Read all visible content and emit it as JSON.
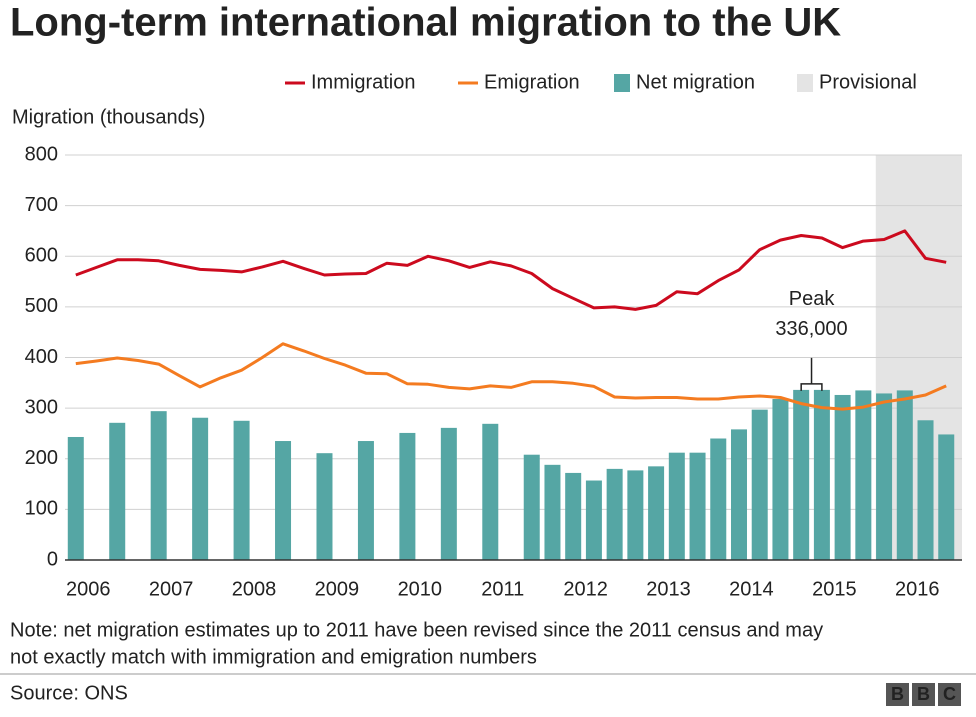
{
  "chart_data": {
    "type": "combo",
    "title": "Long-term international migration to the UK",
    "y_label": "Migration (thousands)",
    "xlim": [
      2005.72,
      2016.54
    ],
    "xticks": [
      2006,
      2007,
      2008,
      2009,
      2010,
      2011,
      2012,
      2013,
      2014,
      2015,
      2016
    ],
    "ylim": [
      0,
      800
    ],
    "yticks": [
      0,
      100,
      200,
      300,
      400,
      500,
      600,
      700,
      800
    ],
    "grid": true,
    "legend": "top-right",
    "shaded_region": {
      "name": "Provisional",
      "from": 2015.5,
      "color": "#e4e4e4"
    },
    "series": [
      {
        "name": "Immigration",
        "type": "line",
        "color": "#cc0a1e",
        "x": [
          2005.85,
          2006.1,
          2006.35,
          2006.6,
          2006.85,
          2007.1,
          2007.35,
          2007.6,
          2007.85,
          2008.1,
          2008.35,
          2008.6,
          2008.85,
          2009.1,
          2009.35,
          2009.6,
          2009.85,
          2010.1,
          2010.35,
          2010.6,
          2010.85,
          2011.1,
          2011.35,
          2011.6,
          2011.85,
          2012.1,
          2012.35,
          2012.6,
          2012.85,
          2013.1,
          2013.35,
          2013.6,
          2013.85,
          2014.1,
          2014.35,
          2014.6,
          2014.85,
          2015.1,
          2015.35,
          2015.6,
          2015.85,
          2016.1,
          2016.35
        ],
        "values": [
          563,
          578,
          593,
          593,
          591,
          582,
          574,
          572,
          569,
          579,
          590,
          576,
          563,
          565,
          566,
          586,
          582,
          600,
          591,
          578,
          589,
          581,
          566,
          536,
          517,
          498,
          500,
          495,
          503,
          530,
          526,
          552,
          573,
          613,
          632,
          641,
          636,
          617,
          630,
          633,
          650,
          596,
          588
        ]
      },
      {
        "name": "Emigration",
        "type": "line",
        "color": "#f47b20",
        "x": [
          2005.85,
          2006.1,
          2006.35,
          2006.6,
          2006.85,
          2007.1,
          2007.35,
          2007.6,
          2007.85,
          2008.1,
          2008.35,
          2008.6,
          2008.85,
          2009.1,
          2009.35,
          2009.6,
          2009.85,
          2010.1,
          2010.35,
          2010.6,
          2010.85,
          2011.1,
          2011.35,
          2011.6,
          2011.85,
          2012.1,
          2012.35,
          2012.6,
          2012.85,
          2013.1,
          2013.35,
          2013.6,
          2013.85,
          2014.1,
          2014.35,
          2014.6,
          2014.85,
          2015.1,
          2015.35,
          2015.6,
          2015.85,
          2016.1,
          2016.35
        ],
        "values": [
          388,
          393,
          399,
          394,
          387,
          364,
          342,
          360,
          375,
          400,
          427,
          413,
          398,
          385,
          369,
          368,
          348,
          347,
          341,
          338,
          344,
          341,
          352,
          352,
          349,
          343,
          322,
          320,
          321,
          321,
          318,
          318,
          322,
          324,
          321,
          309,
          301,
          298,
          302,
          312,
          318,
          326,
          344
        ]
      },
      {
        "name": "Net migration",
        "type": "bar",
        "color": "#55a6a4",
        "x": [
          2005.85,
          2006.35,
          2006.85,
          2007.35,
          2007.85,
          2008.35,
          2008.85,
          2009.35,
          2009.85,
          2010.35,
          2010.85,
          2011.35,
          2011.6,
          2011.85,
          2012.1,
          2012.35,
          2012.6,
          2012.85,
          2013.1,
          2013.35,
          2013.6,
          2013.85,
          2014.1,
          2014.35,
          2014.6,
          2014.85,
          2015.1,
          2015.35,
          2015.6,
          2015.85,
          2016.1,
          2016.35
        ],
        "values": [
          243,
          271,
          294,
          281,
          275,
          235,
          211,
          235,
          251,
          261,
          269,
          208,
          188,
          172,
          157,
          180,
          177,
          185,
          212,
          212,
          240,
          258,
          297,
          318,
          336,
          336,
          326,
          335,
          329,
          335,
          276,
          248
        ]
      }
    ],
    "annotation": {
      "lines": [
        "Peak",
        "336,000"
      ],
      "x_from": 2014.6,
      "x_to": 2014.85,
      "y": 336
    },
    "note": [
      "Note: net migration estimates up to 2011 have been revised since the 2011 census and may",
      "not exactly match with immigration and emigration numbers"
    ],
    "source": "Source:  ONS",
    "logo": [
      "B",
      "B",
      "C"
    ]
  }
}
